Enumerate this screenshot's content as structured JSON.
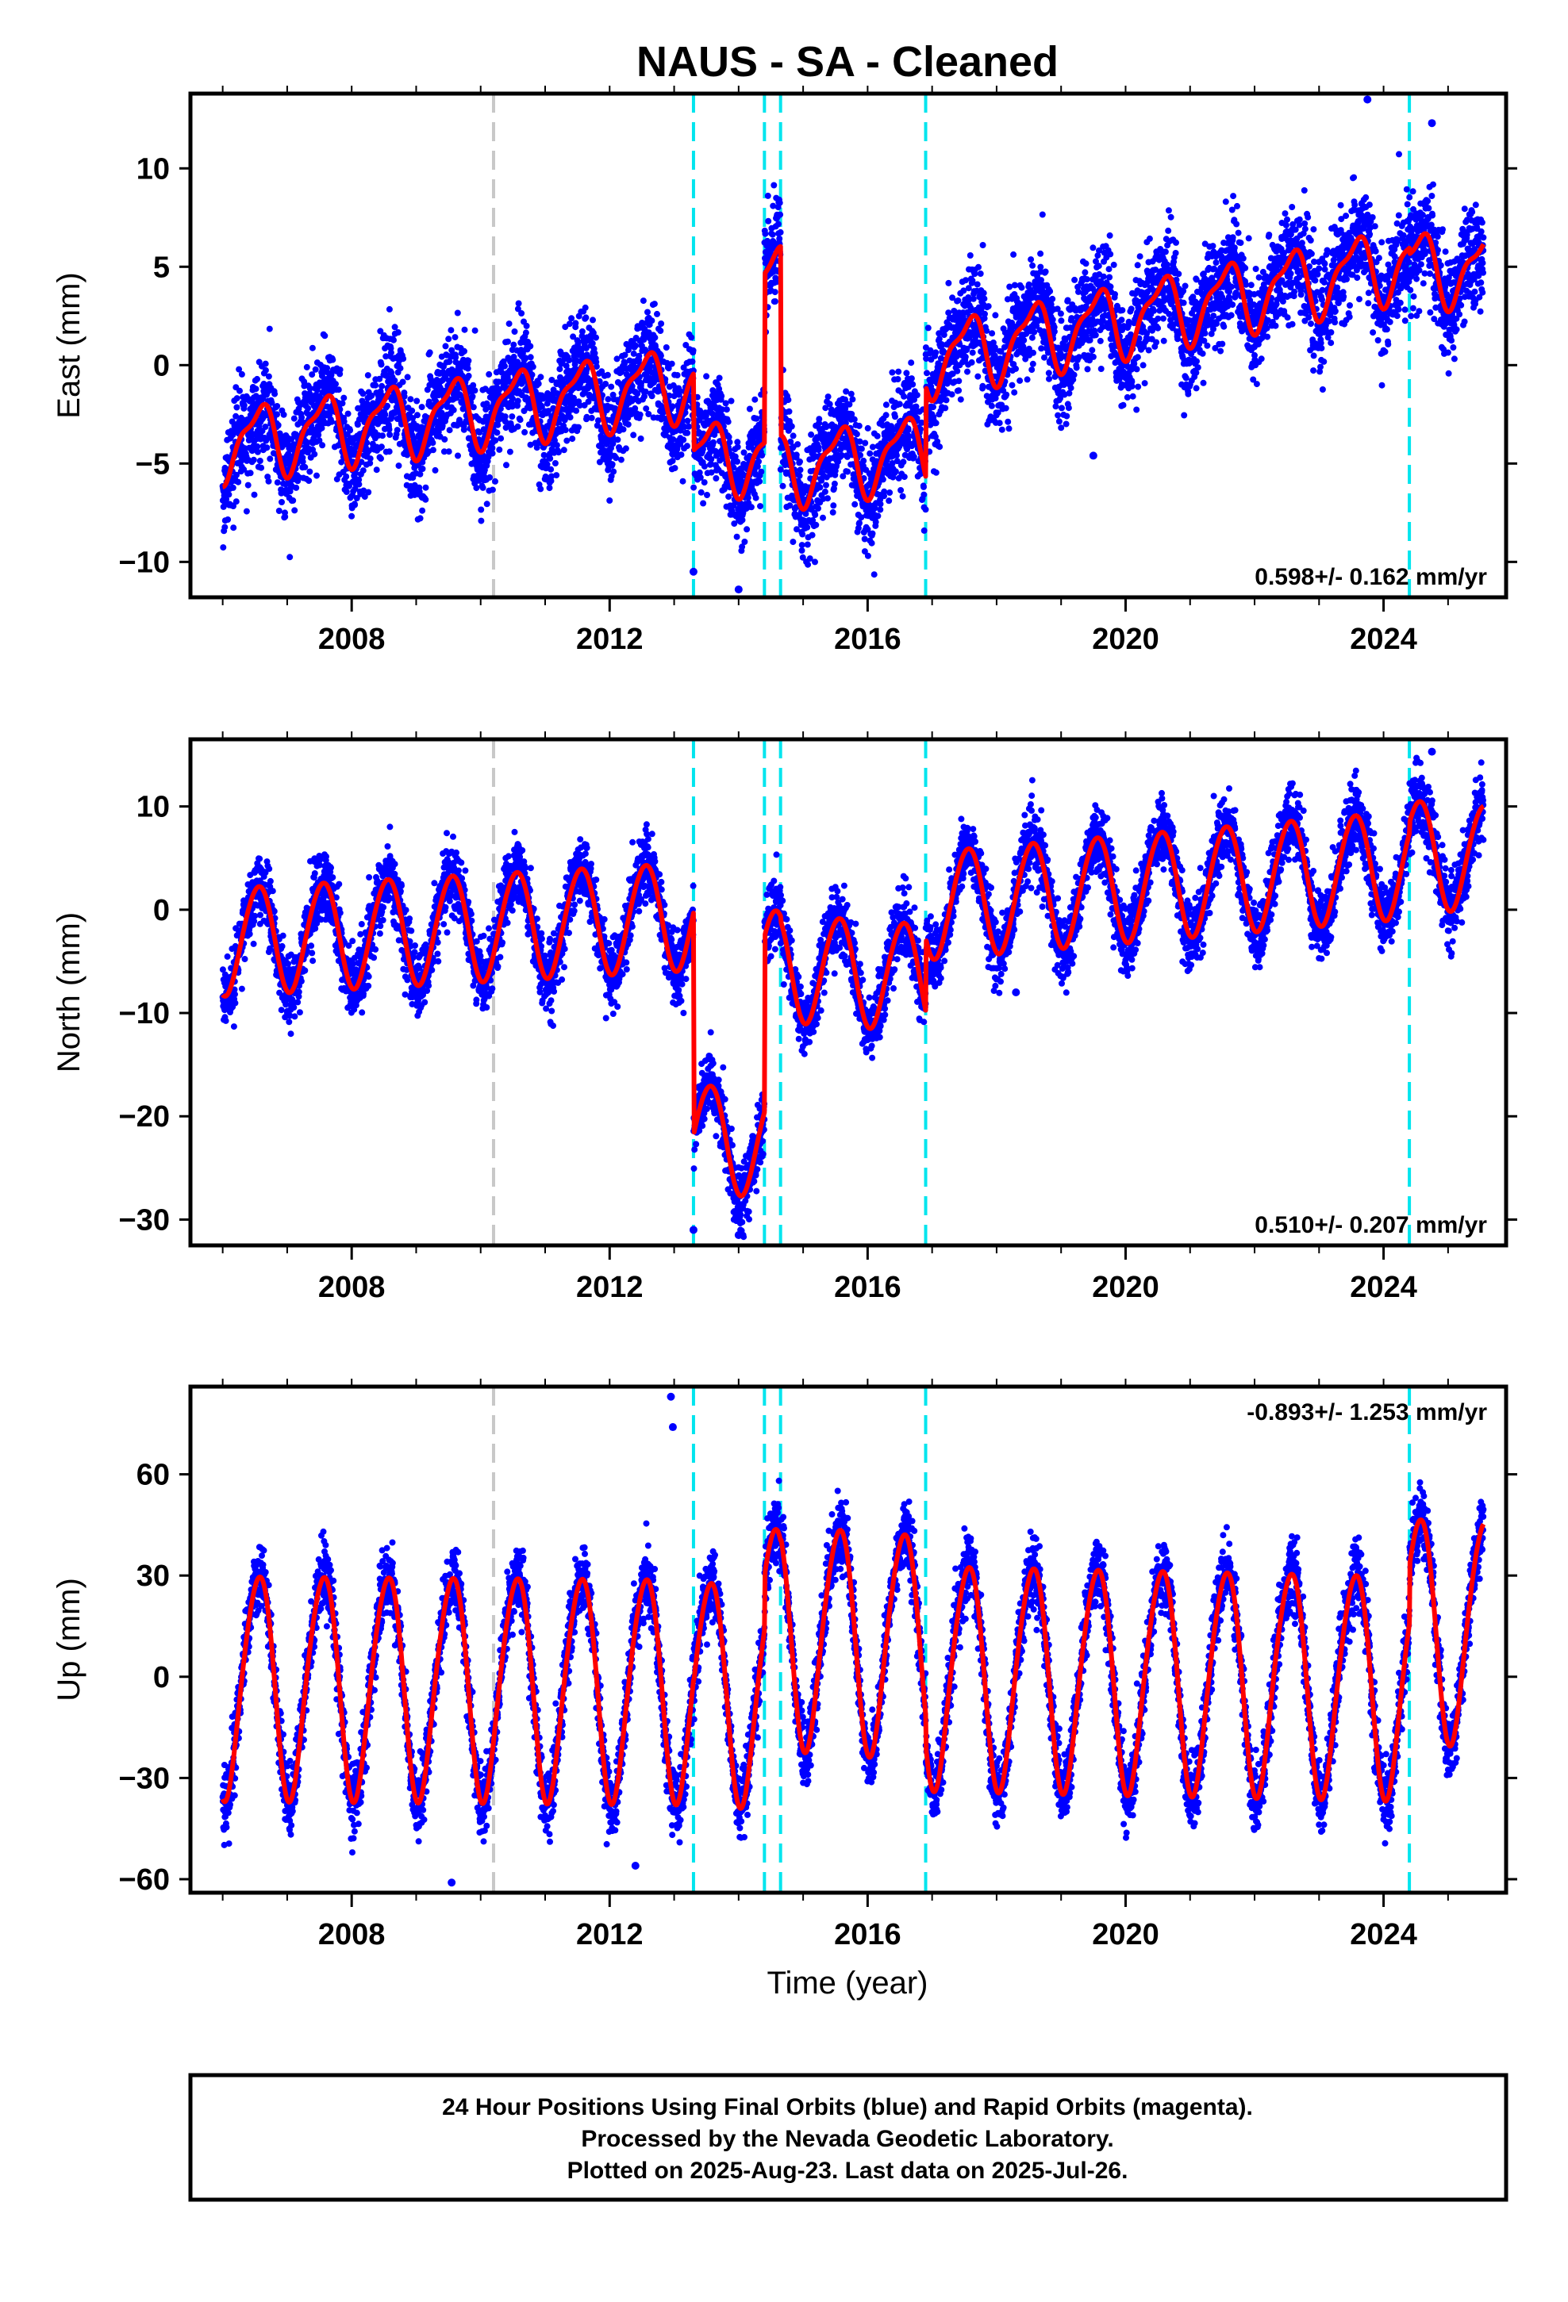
{
  "figure": {
    "title": "NAUS  - SA - Cleaned",
    "xlabel": "Time (year)",
    "footer": [
      "24 Hour Positions Using Final Orbits (blue) and Rapid Orbits (magenta).",
      "Processed by the Nevada Geodetic Laboratory.",
      "Plotted on 2025-Aug-23. Last data on 2025-Jul-26."
    ],
    "colors": {
      "final_orbits": "#0000ff",
      "model_fit": "#ff0000",
      "equipment_change": "#00e5ee",
      "other_event": "#c8c8c8"
    }
  },
  "chart_data": [
    {
      "type": "scatter",
      "name": "east",
      "ylabel": "East (mm)",
      "rate_label": "0.598+/- 0.162 mm/yr",
      "rate_position": "bottom-right",
      "xlim": [
        2005.5,
        2025.9
      ],
      "ylim": [
        -11.8,
        13.8
      ],
      "xticks": [
        2008,
        2012,
        2016,
        2020,
        2024
      ],
      "yticks": [
        -10,
        -5,
        0,
        5,
        10
      ],
      "ytick_labels": [
        "−10",
        "−5",
        "0",
        "5",
        "10"
      ],
      "grid": false,
      "series_color": "#0000ff",
      "fit_color": "#ff0000",
      "events": [
        {
          "x": 2010.2,
          "kind": "other"
        },
        {
          "x": 2013.3,
          "kind": "equipment"
        },
        {
          "x": 2014.4,
          "kind": "equipment"
        },
        {
          "x": 2014.65,
          "kind": "equipment"
        },
        {
          "x": 2016.9,
          "kind": "equipment"
        },
        {
          "x": 2024.4,
          "kind": "equipment"
        }
      ],
      "model": {
        "start": 2006.0,
        "end": 2025.55,
        "seasonal": [
          1.7,
          0.6
        ],
        "noise_sd": 1.3,
        "segments": [
          {
            "from": 2006.0,
            "to": 2013.3,
            "y0": -4.0,
            "y1": -0.8
          },
          {
            "from": 2013.3,
            "to": 2014.4,
            "y0": -4.7,
            "y1": -4.6
          },
          {
            "from": 2014.4,
            "to": 2014.65,
            "y0": 4.0,
            "y1": 4.3
          },
          {
            "from": 2014.65,
            "to": 2016.9,
            "y0": -5.3,
            "y1": -4.3
          },
          {
            "from": 2016.9,
            "to": 2024.4,
            "y0": 0.3,
            "y1": 5.3
          },
          {
            "from": 2024.4,
            "to": 2025.55,
            "y0": 5.0,
            "y1": 4.8
          }
        ],
        "outliers": [
          [
            2023.75,
            13.5
          ],
          [
            2024.75,
            12.3
          ],
          [
            2014.0,
            -11.4
          ],
          [
            2013.3,
            -10.5
          ],
          [
            2009.1,
            -6.7
          ],
          [
            2019.5,
            -4.6
          ]
        ]
      }
    },
    {
      "type": "scatter",
      "name": "north",
      "ylabel": "North (mm)",
      "rate_label": "0.510+/- 0.207 mm/yr",
      "rate_position": "bottom-right",
      "xlim": [
        2005.5,
        2025.9
      ],
      "ylim": [
        -32.5,
        16.5
      ],
      "xticks": [
        2008,
        2012,
        2016,
        2020,
        2024
      ],
      "yticks": [
        -30,
        -20,
        -10,
        0,
        10
      ],
      "ytick_labels": [
        "−30",
        "−20",
        "−10",
        "0",
        "10"
      ],
      "grid": false,
      "series_color": "#0000ff",
      "fit_color": "#ff0000",
      "events": [
        {
          "x": 2010.2,
          "kind": "other"
        },
        {
          "x": 2013.3,
          "kind": "equipment"
        },
        {
          "x": 2014.4,
          "kind": "equipment"
        },
        {
          "x": 2014.65,
          "kind": "equipment"
        },
        {
          "x": 2016.9,
          "kind": "equipment"
        },
        {
          "x": 2024.4,
          "kind": "equipment"
        }
      ],
      "model": {
        "start": 2006.0,
        "end": 2025.55,
        "seasonal": [
          5.2,
          0.3
        ],
        "noise_sd": 1.6,
        "segments": [
          {
            "from": 2006.0,
            "to": 2013.3,
            "y0": -3.0,
            "y1": -0.5
          },
          {
            "from": 2013.3,
            "to": 2014.4,
            "y0": -22.0,
            "y1": -22.5
          },
          {
            "from": 2014.4,
            "to": 2014.65,
            "y0": -5.5,
            "y1": -5.0
          },
          {
            "from": 2014.65,
            "to": 2016.9,
            "y0": -5.5,
            "y1": -6.5
          },
          {
            "from": 2016.9,
            "to": 2024.4,
            "y0": 0.5,
            "y1": 4.5
          },
          {
            "from": 2024.4,
            "to": 2025.55,
            "y0": 5.5,
            "y1": 5.0
          }
        ],
        "outliers": [
          [
            2013.3,
            -31.0
          ],
          [
            2014.0,
            -31.5
          ],
          [
            2024.75,
            15.3
          ],
          [
            2018.3,
            -8.0
          ]
        ]
      }
    },
    {
      "type": "scatter",
      "name": "up",
      "ylabel": "Up (mm)",
      "rate_label": "-0.893+/- 1.253 mm/yr",
      "rate_position": "top-right",
      "xlim": [
        2005.5,
        2025.9
      ],
      "ylim": [
        -64,
        86
      ],
      "xticks": [
        2008,
        2012,
        2016,
        2020,
        2024
      ],
      "yticks": [
        -60,
        -30,
        0,
        30,
        60
      ],
      "ytick_labels": [
        "−60",
        "−30",
        "0",
        "30",
        "60"
      ],
      "grid": false,
      "series_color": "#0000ff",
      "fit_color": "#ff0000",
      "events": [
        {
          "x": 2010.2,
          "kind": "other"
        },
        {
          "x": 2013.3,
          "kind": "equipment"
        },
        {
          "x": 2014.4,
          "kind": "equipment"
        },
        {
          "x": 2014.65,
          "kind": "equipment"
        },
        {
          "x": 2016.9,
          "kind": "equipment"
        },
        {
          "x": 2024.4,
          "kind": "equipment"
        }
      ],
      "model": {
        "start": 2006.0,
        "end": 2025.55,
        "seasonal": [
          33.0,
          3.0
        ],
        "noise_sd": 5.0,
        "segments": [
          {
            "from": 2006.0,
            "to": 2013.3,
            "y0": -2.0,
            "y1": -3.0
          },
          {
            "from": 2013.3,
            "to": 2014.4,
            "y0": -4.0,
            "y1": -4.0
          },
          {
            "from": 2014.4,
            "to": 2014.65,
            "y0": 12.0,
            "y1": 12.0
          },
          {
            "from": 2014.65,
            "to": 2016.9,
            "y0": 13.0,
            "y1": 10.0
          },
          {
            "from": 2016.9,
            "to": 2024.4,
            "y0": 1.0,
            "y1": -2.0
          },
          {
            "from": 2024.4,
            "to": 2025.55,
            "y0": 15.0,
            "y1": 14.0
          }
        ],
        "outliers": [
          [
            2012.95,
            83.0
          ],
          [
            2012.98,
            74.0
          ],
          [
            2009.55,
            -61.0
          ],
          [
            2012.4,
            -56.0
          ]
        ]
      }
    }
  ]
}
